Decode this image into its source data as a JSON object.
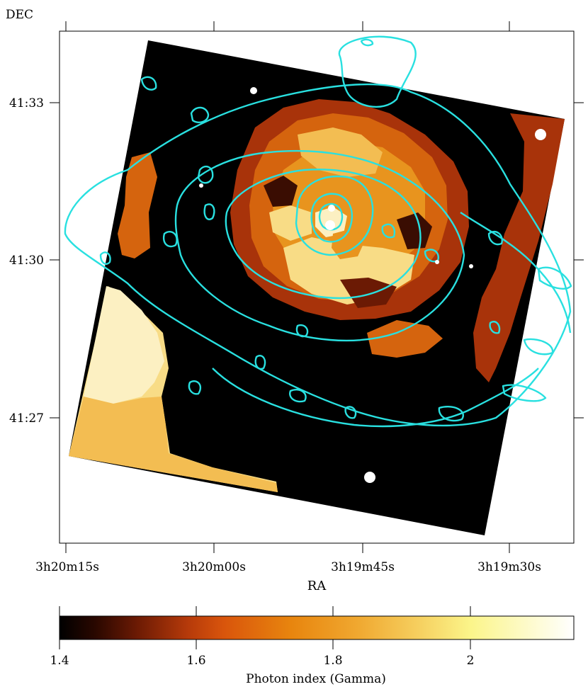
{
  "chart_data": {
    "type": "heatmap",
    "title": "",
    "xlabel": "RA",
    "ylabel": "DEC",
    "x_ticks": [
      "3h20m15s",
      "3h20m00s",
      "3h19m45s",
      "3h19m30s"
    ],
    "y_ticks": [
      "41:33",
      "41:30",
      "41:27"
    ],
    "colorbar": {
      "label": "Photon index (Gamma)",
      "ticks": [
        "1.4",
        "1.6",
        "1.8",
        "2"
      ],
      "range": [
        1.4,
        2.15
      ],
      "colormap": [
        "#000000",
        "#2a0800",
        "#6b1a04",
        "#b63a0a",
        "#d9550c",
        "#e8850e",
        "#f0a830",
        "#f6d060",
        "#fbf58a",
        "#ffffff"
      ]
    },
    "grid": false,
    "legend": "none",
    "image_colors": {
      "dark": "#000000",
      "rust": "#a8330a",
      "orange": "#d5640e",
      "amber": "#e8941e",
      "gold": "#f3bd52",
      "pale": "#f8dc86",
      "cream": "#fcf0c2",
      "contour": "#29e0e0",
      "point_source": "#ffffff"
    }
  }
}
